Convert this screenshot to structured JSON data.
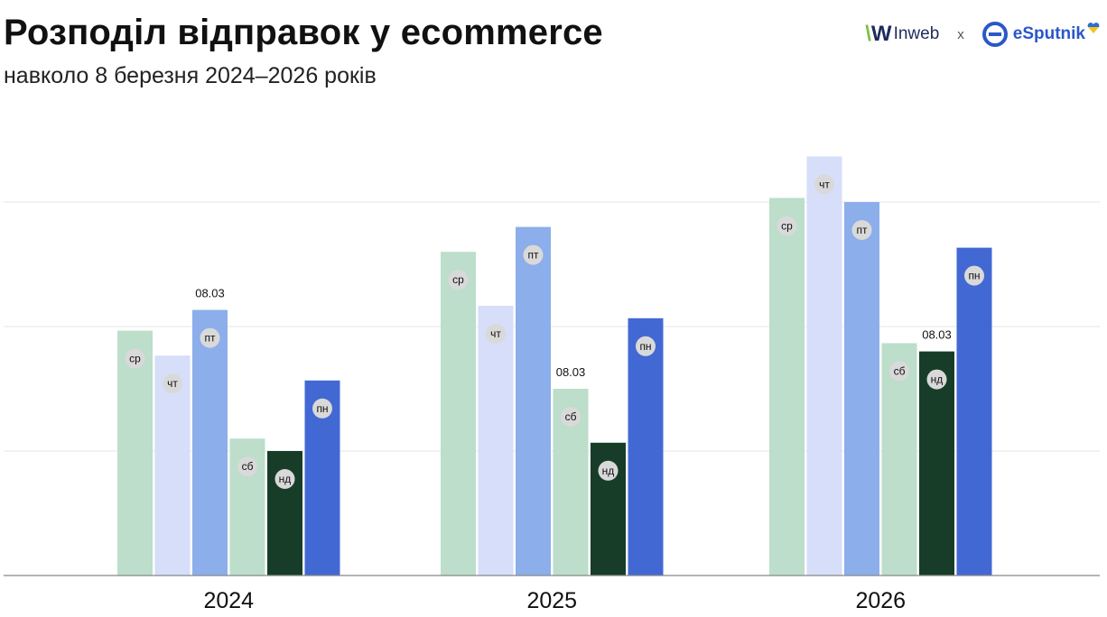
{
  "header": {
    "title": "Розподіл відправок у ecommerce",
    "subtitle": "навколо 8 березня 2024–2026 років"
  },
  "logos": {
    "inweb": "Inweb",
    "separator": "x",
    "esputnik": "eSputnik"
  },
  "colors": {
    "ср": "#bcdecb",
    "чт": "#d6defa",
    "пт": "#8caeea",
    "сб": "#bcdecb",
    "нд": "#173d28",
    "пн": "#4268d3",
    "label_bg": "#d9d9d9",
    "grid": "#e6e6e6",
    "axis": "#888888"
  },
  "chart_data": {
    "type": "bar",
    "categories": [
      "2024",
      "2025",
      "2026"
    ],
    "ylim": [
      0,
      100
    ],
    "grid": true,
    "groups": [
      {
        "year": "2024",
        "bars": [
          {
            "day": "ср",
            "value": 59
          },
          {
            "day": "чт",
            "value": 53
          },
          {
            "day": "пт",
            "value": 64,
            "annotation": "08.03"
          },
          {
            "day": "сб",
            "value": 33
          },
          {
            "day": "нд",
            "value": 30
          },
          {
            "day": "пн",
            "value": 47
          }
        ]
      },
      {
        "year": "2025",
        "bars": [
          {
            "day": "ср",
            "value": 78
          },
          {
            "day": "чт",
            "value": 65
          },
          {
            "day": "пт",
            "value": 84
          },
          {
            "day": "сб",
            "value": 45,
            "annotation": "08.03"
          },
          {
            "day": "нд",
            "value": 32
          },
          {
            "day": "пн",
            "value": 62
          }
        ]
      },
      {
        "year": "2026",
        "bars": [
          {
            "day": "ср",
            "value": 91
          },
          {
            "day": "чт",
            "value": 101
          },
          {
            "day": "пт",
            "value": 90
          },
          {
            "day": "сб",
            "value": 56
          },
          {
            "day": "нд",
            "value": 54,
            "annotation": "08.03"
          },
          {
            "day": "пн",
            "value": 79
          }
        ]
      }
    ]
  }
}
